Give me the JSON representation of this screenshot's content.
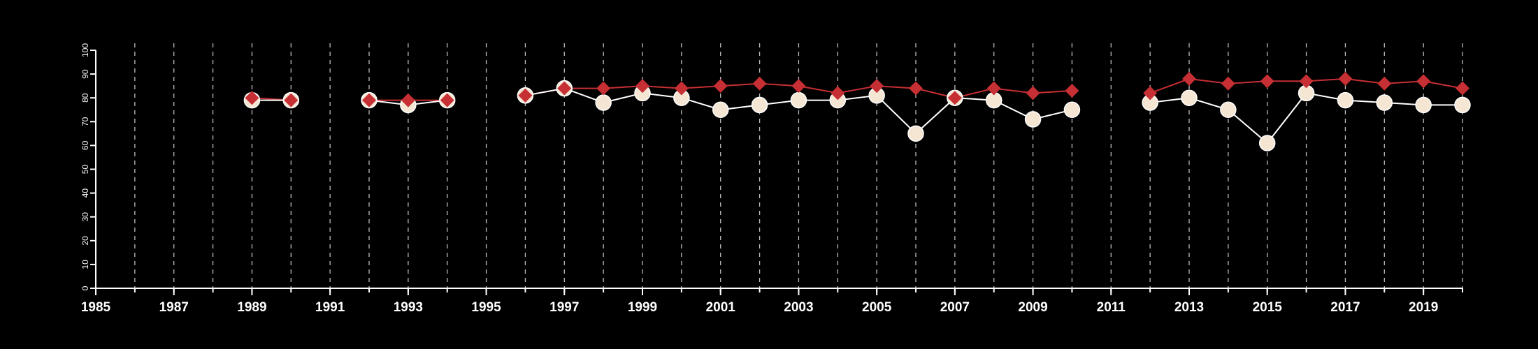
{
  "chart_data": {
    "type": "line",
    "title": "",
    "xlabel": "",
    "ylabel": "",
    "xlim": [
      1985,
      2020
    ],
    "ylim": [
      0,
      100
    ],
    "x_ticks": [
      1985,
      1987,
      1989,
      1991,
      1993,
      1995,
      1997,
      1999,
      2001,
      2003,
      2005,
      2007,
      2009,
      2011,
      2013,
      2015,
      2017,
      2019
    ],
    "y_ticks": [
      0,
      10,
      20,
      30,
      40,
      50,
      60,
      70,
      80,
      90,
      100
    ],
    "grid": "vertical dashed lines at every year",
    "background": "#000000",
    "series": [
      {
        "marker": "circle",
        "color": "#f5e6d3",
        "line_color": "#ffffff",
        "points": [
          [
            1989,
            79
          ],
          [
            1990,
            79
          ],
          null,
          [
            1992,
            79
          ],
          [
            1993,
            77
          ],
          [
            1994,
            79
          ],
          null,
          [
            1996,
            81
          ],
          [
            1997,
            84
          ],
          [
            1998,
            78
          ],
          [
            1999,
            82
          ],
          [
            2000,
            80
          ],
          [
            2001,
            75
          ],
          [
            2002,
            77
          ],
          [
            2003,
            79
          ],
          [
            2004,
            79
          ],
          [
            2005,
            81
          ],
          [
            2006,
            65
          ],
          [
            2007,
            80
          ],
          [
            2008,
            79
          ],
          [
            2009,
            71
          ],
          [
            2010,
            75
          ],
          null,
          [
            2012,
            78
          ],
          [
            2013,
            80
          ],
          [
            2014,
            75
          ],
          [
            2015,
            61
          ],
          [
            2016,
            82
          ],
          [
            2017,
            79
          ],
          [
            2018,
            78
          ],
          [
            2019,
            77
          ],
          [
            2020,
            77
          ]
        ]
      },
      {
        "marker": "diamond",
        "color": "#c62f33",
        "line_color": "#c62f33",
        "points": [
          [
            1989,
            80
          ],
          [
            1990,
            79
          ],
          null,
          [
            1992,
            79
          ],
          [
            1993,
            79
          ],
          [
            1994,
            79
          ],
          null,
          [
            1996,
            81
          ],
          [
            1997,
            84
          ],
          [
            1998,
            84
          ],
          [
            1999,
            85
          ],
          [
            2000,
            84
          ],
          [
            2001,
            85
          ],
          [
            2002,
            86
          ],
          [
            2003,
            85
          ],
          [
            2004,
            82
          ],
          [
            2005,
            85
          ],
          [
            2006,
            84
          ],
          [
            2007,
            80
          ],
          [
            2008,
            84
          ],
          [
            2009,
            82
          ],
          [
            2010,
            83
          ],
          null,
          [
            2012,
            82
          ],
          [
            2013,
            88
          ],
          [
            2014,
            86
          ],
          [
            2015,
            87
          ],
          [
            2016,
            87
          ],
          [
            2017,
            88
          ],
          [
            2018,
            86
          ],
          [
            2019,
            87
          ],
          [
            2020,
            84
          ]
        ]
      }
    ]
  }
}
